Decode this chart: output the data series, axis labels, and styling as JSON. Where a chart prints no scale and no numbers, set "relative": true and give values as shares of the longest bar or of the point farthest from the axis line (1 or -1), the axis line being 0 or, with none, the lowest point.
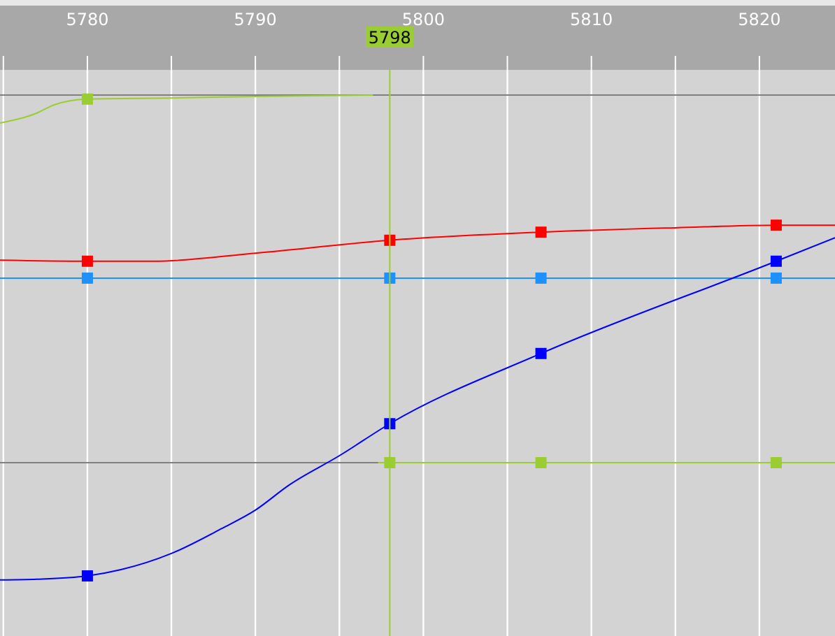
{
  "chart_data": {
    "type": "line",
    "relative": true,
    "xlim": [
      5774.8,
      5824.5
    ],
    "xticks": [
      {
        "value": 5775,
        "label": null
      },
      5780,
      {
        "value": 5785,
        "label": null
      },
      5790,
      {
        "value": 5795,
        "label": null
      },
      5800,
      {
        "value": 5805,
        "label": null
      },
      5810,
      {
        "value": 5815,
        "label": null
      },
      5820
    ],
    "grid": "x",
    "tick_labels": "x",
    "line_style": "solid",
    "series": [
      {
        "color": "#9acd32",
        "x": [
          5774.8,
          5777,
          5778,
          5780,
          5785,
          5790,
          5797
        ],
        "values": [
          0.924,
          0.951,
          0.973,
          0.989,
          0.992,
          0.996,
          1.0
        ],
        "marker": "none"
      },
      {
        "color": "#ff0000",
        "x": [
          5774.8,
          5780,
          5784,
          5790,
          5798,
          5807,
          5815,
          5821,
          5824.5
        ],
        "values": [
          0.551,
          0.548,
          0.548,
          0.57,
          0.605,
          0.627,
          0.639,
          0.646,
          0.646
        ],
        "marker": "none"
      },
      {
        "color": "#1e90ff",
        "x": [
          5774.8,
          5824.5
        ],
        "values": [
          0.502,
          0.502
        ],
        "marker": "none"
      },
      {
        "color": "#0000ff",
        "x": [
          5774.8,
          5777,
          5780,
          5782,
          5785,
          5788,
          5790,
          5792,
          5795,
          5798,
          5807,
          5821,
          5824.5
        ],
        "values": [
          -0.319,
          -0.317,
          -0.308,
          -0.291,
          -0.247,
          -0.179,
          -0.129,
          -0.061,
          0.019,
          0.106,
          0.297,
          0.548,
          0.612
        ],
        "marker": "none"
      },
      {
        "color": "#9acd32",
        "x": [
          5797.3,
          5824.5
        ],
        "values": [
          0,
          0
        ],
        "marker": "none"
      },
      {
        "type": "scatter",
        "color": "#9acd32",
        "x": [
          5780
        ],
        "values": [
          0.989
        ],
        "marker": "square"
      },
      {
        "type": "scatter",
        "color": "#ff0000",
        "x": [
          5780,
          5798,
          5807,
          5821
        ],
        "values": [
          0.548,
          0.605,
          0.627,
          0.646
        ],
        "marker": "square"
      },
      {
        "type": "scatter",
        "color": "#1e90ff",
        "x": [
          5780,
          5798,
          5807,
          5821
        ],
        "values": [
          0.502,
          0.502,
          0.502,
          0.502
        ],
        "marker": "square"
      },
      {
        "type": "scatter",
        "color": "#0000ff",
        "x": [
          5780,
          5798,
          5807,
          5821
        ],
        "values": [
          -0.308,
          0.106,
          0.297,
          0.548
        ],
        "marker": "square"
      },
      {
        "type": "scatter",
        "color": "#9acd32",
        "x": [
          5798,
          5807,
          5821
        ],
        "values": [
          0,
          0,
          0
        ],
        "marker": "square"
      }
    ],
    "ref_lines": [
      {
        "axis": "y",
        "value": 1,
        "color": "#808080"
      },
      {
        "axis": "y",
        "value": 0,
        "color": "#808080"
      },
      {
        "axis": "x",
        "value": 5798,
        "label": "5798",
        "color": "#9acd32"
      }
    ]
  }
}
